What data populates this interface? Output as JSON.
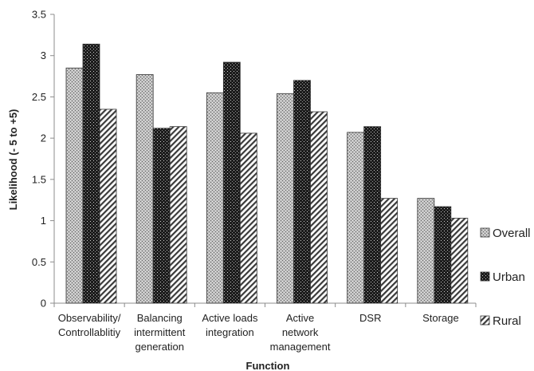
{
  "chart_data": {
    "type": "bar",
    "title": "",
    "xlabel": "Function",
    "ylabel": "Likelihood  (- 5  to +5)",
    "ylim": [
      0,
      3.5
    ],
    "yticks": [
      "0",
      "0.5",
      "1",
      "1.5",
      "2",
      "2.5",
      "3",
      "3.5"
    ],
    "grid": false,
    "legend_position": "right",
    "categories": [
      [
        "Observability/",
        "Controllablitiy"
      ],
      [
        "Balancing",
        "intermittent",
        "generation"
      ],
      [
        "Active loads",
        "integration"
      ],
      [
        "Active",
        "network",
        "management"
      ],
      [
        "DSR"
      ],
      [
        "Storage"
      ]
    ],
    "series": [
      {
        "name": "Overall",
        "values": [
          2.85,
          2.77,
          2.55,
          2.54,
          2.07,
          1.27
        ],
        "pattern": "crosshatch"
      },
      {
        "name": "Urban",
        "values": [
          3.14,
          2.12,
          2.92,
          2.7,
          2.14,
          1.17
        ],
        "pattern": "dark-dots"
      },
      {
        "name": "Rural",
        "values": [
          2.35,
          2.14,
          2.06,
          2.32,
          1.27,
          1.03
        ],
        "pattern": "diagonal"
      }
    ]
  }
}
